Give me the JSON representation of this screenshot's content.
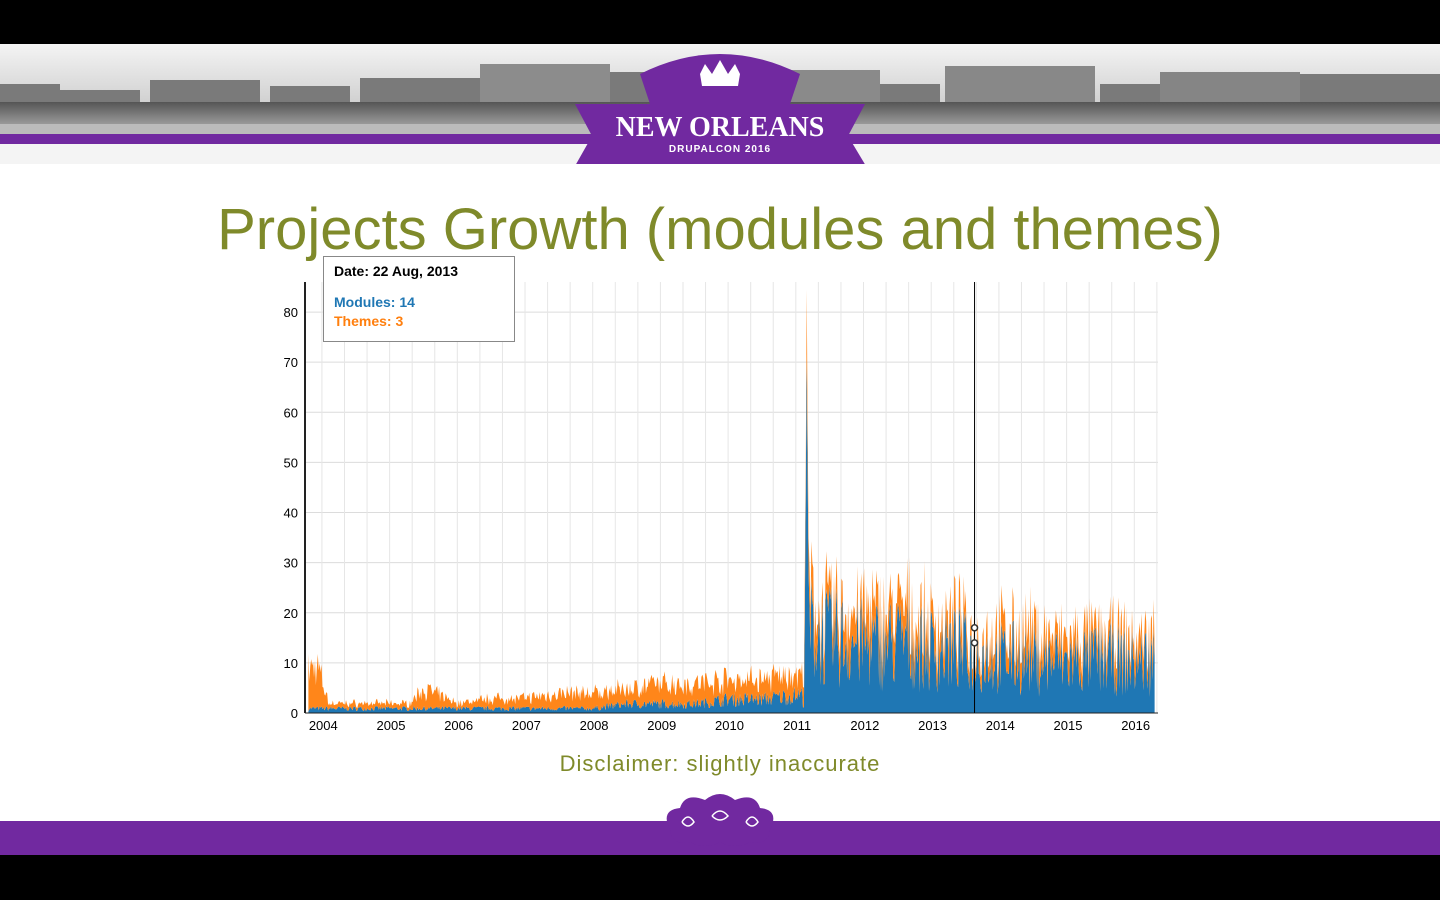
{
  "slide": {
    "title": "Projects Growth (modules and themes)",
    "disclaimer": "Disclaimer: slightly inaccurate",
    "logo": {
      "city": "NEW ORLEANS",
      "event": "DRUPALCON 2016"
    },
    "colors": {
      "purple": "#7129a0",
      "title_olive": "#7f8a2a",
      "modules": "#1f77b4",
      "themes": "#ff7f0e"
    }
  },
  "tooltip": {
    "date": "Date: 22 Aug, 2013",
    "modules": "Modules: 14",
    "themes": "Themes: 3"
  },
  "chart_data": {
    "type": "area",
    "stacked": true,
    "title": "",
    "xlabel": "",
    "ylabel": "",
    "ylim": [
      0,
      86
    ],
    "xlim": [
      2003.75,
      2016.35
    ],
    "yticks": [
      0,
      10,
      20,
      30,
      40,
      50,
      60,
      70,
      80
    ],
    "xticks": [
      "2004",
      "2005",
      "2006",
      "2007",
      "2008",
      "2009",
      "2010",
      "2011",
      "2012",
      "2013",
      "2014",
      "2015",
      "2016"
    ],
    "grid": true,
    "cursor_x": 2013.64,
    "x": [
      2003.8,
      2003.95,
      2004.1,
      2004.5,
      2005.0,
      2005.3,
      2005.5,
      2006.0,
      2006.5,
      2007.0,
      2007.5,
      2008.0,
      2008.5,
      2009.0,
      2009.5,
      2010.0,
      2010.5,
      2011.0,
      2011.12,
      2011.15,
      2011.2,
      2011.4,
      2011.8,
      2012.2,
      2012.6,
      2013.0,
      2013.4,
      2013.64,
      2014.0,
      2014.5,
      2015.0,
      2015.5,
      2016.0,
      2016.3
    ],
    "series": [
      {
        "name": "Modules",
        "values": [
          1,
          1,
          1,
          1,
          1,
          1,
          1,
          1,
          1,
          1,
          1,
          1,
          2,
          2,
          2,
          3,
          3,
          4,
          4,
          60,
          20,
          18,
          17,
          16,
          17,
          15,
          15,
          14,
          13,
          13,
          12,
          13,
          12,
          13
        ]
      },
      {
        "name": "Themes",
        "values": [
          8,
          8,
          1,
          1,
          1,
          1,
          4,
          1,
          2,
          2,
          3,
          3,
          3,
          4,
          4,
          4,
          4,
          4,
          4,
          10,
          6,
          5,
          6,
          6,
          6,
          5,
          5,
          3,
          5,
          5,
          4,
          4,
          4,
          4
        ]
      }
    ]
  }
}
